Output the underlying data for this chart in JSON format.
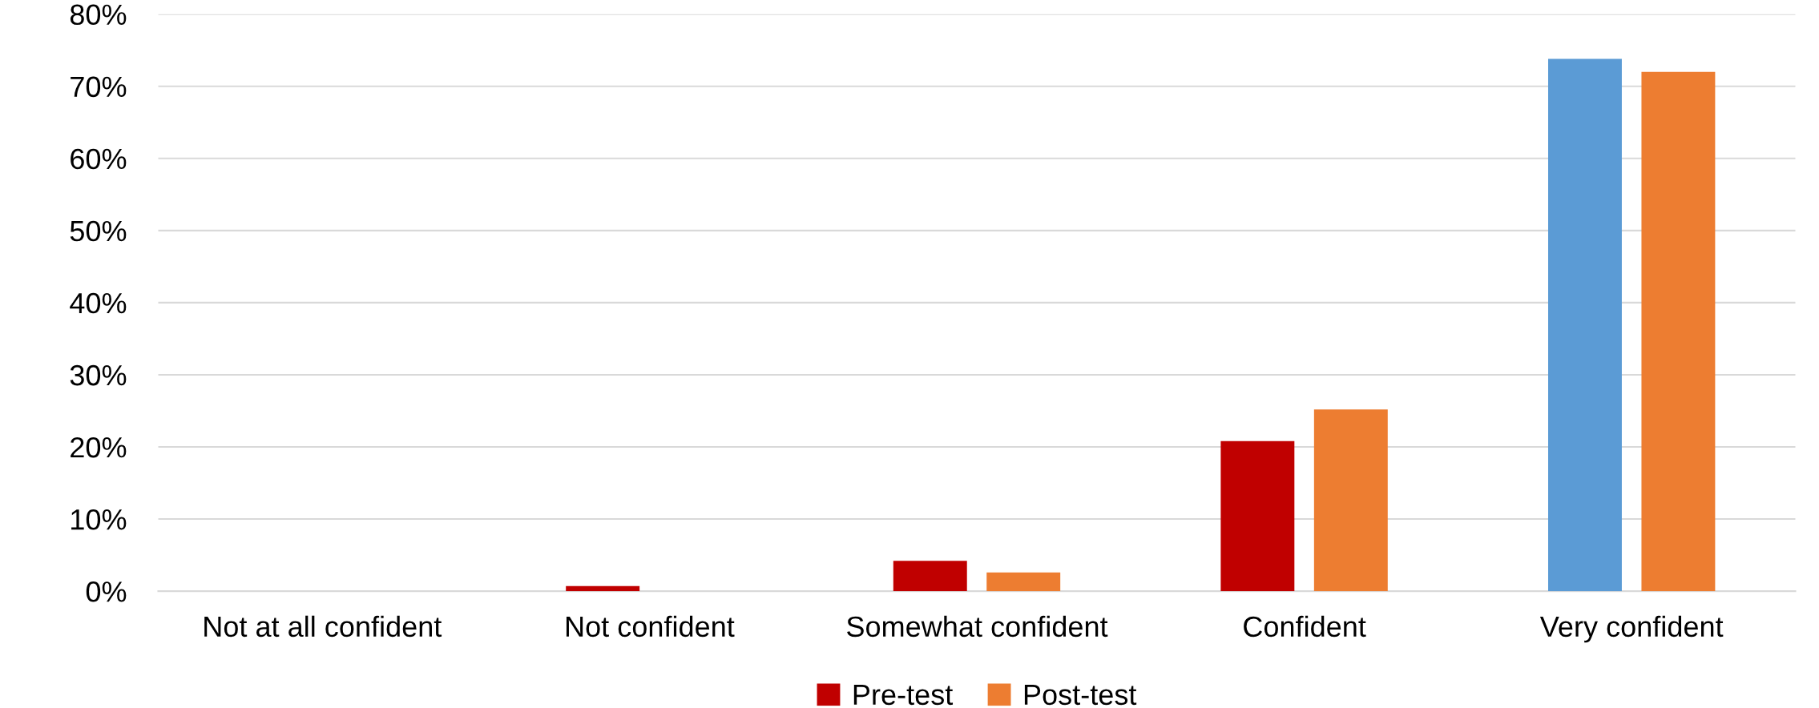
{
  "chart_data": {
    "type": "bar",
    "categories": [
      "Not at all confident",
      "Not confident",
      "Somewhat confident",
      "Confident",
      "Very confident"
    ],
    "series": [
      {
        "name": "Pre-test",
        "color": "#c00000",
        "colors": [
          "#c00000",
          "#c00000",
          "#c00000",
          "#c00000",
          "#5b9bd5"
        ],
        "values": [
          0,
          0.7,
          4.2,
          20.8,
          73.8
        ]
      },
      {
        "name": "Post-test",
        "color": "#ed7d31",
        "values": [
          0,
          0,
          2.6,
          25.2,
          72.0
        ]
      }
    ],
    "ylim": [
      0,
      80
    ],
    "yticks": [
      {
        "value": 0,
        "label": "0%"
      },
      {
        "value": 10,
        "label": "10%"
      },
      {
        "value": 20,
        "label": "20%"
      },
      {
        "value": 30,
        "label": "30%"
      },
      {
        "value": 40,
        "label": "40%"
      },
      {
        "value": 50,
        "label": "50%"
      },
      {
        "value": 60,
        "label": "60%"
      },
      {
        "value": 70,
        "label": "70%"
      },
      {
        "value": 80,
        "label": "80%"
      }
    ],
    "grid": "y",
    "legend": "bottom"
  }
}
